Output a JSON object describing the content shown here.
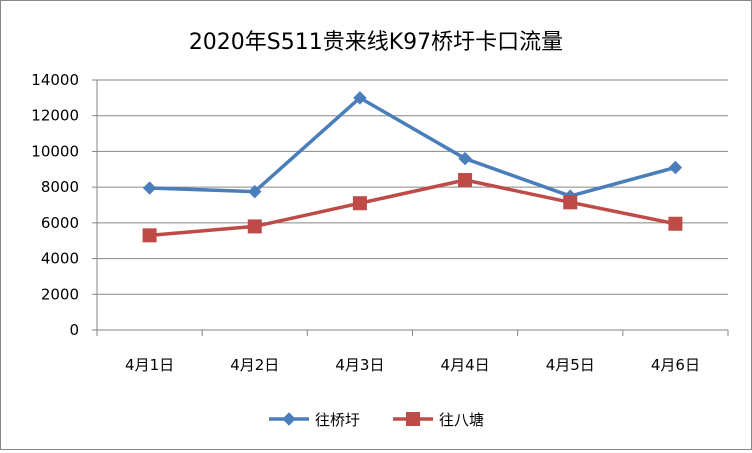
{
  "chart_data": {
    "type": "line",
    "title": "2020年S511贵来线K97桥圩卡口流量",
    "xlabel": "",
    "ylabel": "",
    "categories": [
      "4月1日",
      "4月2日",
      "4月3日",
      "4月4日",
      "4月5日",
      "4月6日"
    ],
    "ylim": [
      0,
      14000
    ],
    "yticks": [
      "0",
      "2000",
      "4000",
      "6000",
      "8000",
      "10000",
      "12000",
      "14000"
    ],
    "grid": true,
    "legend_position": "bottom",
    "series": [
      {
        "name": "往桥圩",
        "color": "#4a7ebb",
        "marker": "diamond",
        "values": [
          7950,
          7750,
          13000,
          9600,
          7500,
          9100
        ]
      },
      {
        "name": "往八塘",
        "color": "#be4b48",
        "marker": "square",
        "values": [
          5300,
          5800,
          7100,
          8400,
          7150,
          5950
        ]
      }
    ]
  }
}
